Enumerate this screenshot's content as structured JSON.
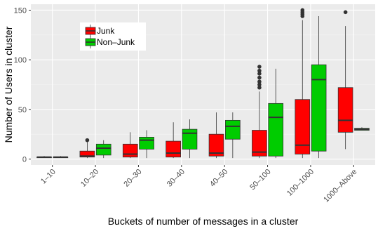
{
  "chart_data": {
    "type": "boxplot",
    "title": "",
    "xlabel": "Buckets of number of messages in a cluster",
    "ylabel": "Number of Users in cluster",
    "ylim": [
      -6,
      156
    ],
    "yticks": [
      0,
      50,
      100,
      150
    ],
    "grid": true,
    "legend_position": "top-left inside",
    "categories": [
      "1–10",
      "10–20",
      "20–30",
      "30–40",
      "40–50",
      "50–100",
      "100–1000",
      "1000–Above"
    ],
    "series": [
      {
        "name": "Junk",
        "color": "#FF0000",
        "boxes": [
          {
            "category": "1–10",
            "lower_whisker": 2,
            "q1": 2,
            "median": 2,
            "q3": 2,
            "upper_whisker": 3,
            "outliers": []
          },
          {
            "category": "10–20",
            "lower_whisker": 1,
            "q1": 2,
            "median": 3,
            "q3": 8,
            "upper_whisker": 17,
            "outliers": [
              19
            ]
          },
          {
            "category": "20–30",
            "lower_whisker": 1,
            "q1": 2,
            "median": 5,
            "q3": 15,
            "upper_whisker": 27,
            "outliers": []
          },
          {
            "category": "30–40",
            "lower_whisker": 1,
            "q1": 2,
            "median": 6,
            "q3": 18,
            "upper_whisker": 37,
            "outliers": []
          },
          {
            "category": "40–50",
            "lower_whisker": 1,
            "q1": 3,
            "median": 6,
            "q3": 25,
            "upper_whisker": 47,
            "outliers": []
          },
          {
            "category": "50–100",
            "lower_whisker": 1,
            "q1": 3,
            "median": 7,
            "q3": 29,
            "upper_whisker": 68,
            "outliers": [
              72,
              75,
              78,
              82,
              86,
              89,
              93
            ]
          },
          {
            "category": "100–1000",
            "lower_whisker": 1,
            "q1": 5,
            "median": 14,
            "q3": 60,
            "upper_whisker": 140,
            "outliers": [
              144,
              146,
              148,
              150
            ]
          },
          {
            "category": "1000–Above",
            "lower_whisker": 10,
            "q1": 27,
            "median": 39,
            "q3": 72,
            "upper_whisker": 134,
            "outliers": [
              148
            ]
          }
        ]
      },
      {
        "name": "Non–Junk",
        "color": "#00CC00",
        "boxes": [
          {
            "category": "1–10",
            "lower_whisker": 2,
            "q1": 2,
            "median": 2,
            "q3": 2,
            "upper_whisker": 3,
            "outliers": []
          },
          {
            "category": "10–20",
            "lower_whisker": 1,
            "q1": 4,
            "median": 11,
            "q3": 15,
            "upper_whisker": 19,
            "outliers": []
          },
          {
            "category": "20–30",
            "lower_whisker": 1,
            "q1": 10,
            "median": 19,
            "q3": 22,
            "upper_whisker": 29,
            "outliers": []
          },
          {
            "category": "30–40",
            "lower_whisker": 1,
            "q1": 10,
            "median": 26,
            "q3": 30,
            "upper_whisker": 40,
            "outliers": []
          },
          {
            "category": "40–50",
            "lower_whisker": 1,
            "q1": 20,
            "median": 33,
            "q3": 39,
            "upper_whisker": 47,
            "outliers": []
          },
          {
            "category": "50–100",
            "lower_whisker": 1,
            "q1": 3,
            "median": 42,
            "q3": 56,
            "upper_whisker": 91,
            "outliers": []
          },
          {
            "category": "100–1000",
            "lower_whisker": 1,
            "q1": 8,
            "median": 80,
            "q3": 95,
            "upper_whisker": 144,
            "outliers": []
          },
          {
            "category": "1000–Above",
            "lower_whisker": 29,
            "q1": 29,
            "median": 30,
            "q3": 31,
            "upper_whisker": 32,
            "outliers": []
          }
        ]
      }
    ]
  }
}
